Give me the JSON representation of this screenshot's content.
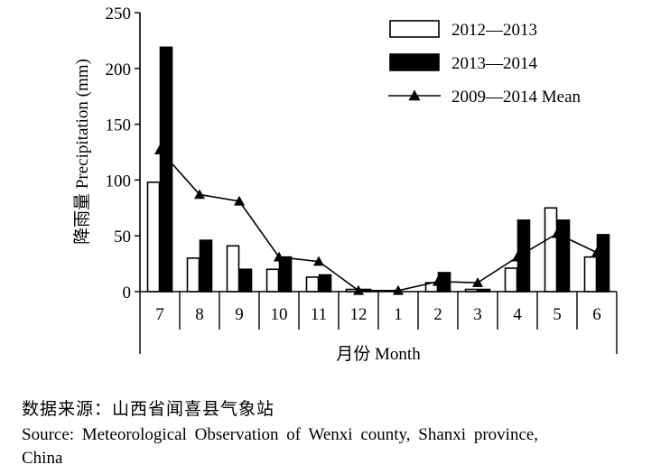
{
  "chart_data": {
    "type": "bar",
    "categories": [
      "7",
      "8",
      "9",
      "10",
      "11",
      "12",
      "1",
      "2",
      "3",
      "4",
      "5",
      "6"
    ],
    "series": [
      {
        "name": "2012—2013",
        "kind": "bar",
        "fill": "#ffffff",
        "values": [
          98,
          30,
          41,
          20,
          13,
          2,
          0,
          8,
          2,
          21,
          75,
          31
        ]
      },
      {
        "name": "2013—2014",
        "kind": "bar",
        "fill": "#000000",
        "values": [
          219,
          46,
          20,
          31,
          15,
          2,
          0,
          17,
          2,
          64,
          64,
          51
        ]
      },
      {
        "name": "2009—2014 Mean",
        "kind": "line",
        "marker": "triangle",
        "values": [
          127,
          87,
          81,
          31,
          27,
          1,
          1,
          9,
          8,
          31,
          52,
          35
        ]
      }
    ],
    "ylabel": "降雨量 Precipitation (mm)",
    "xlabel": "月份 Month",
    "ylim": [
      0,
      250
    ],
    "yticks": [
      0,
      50,
      100,
      150,
      200,
      250
    ],
    "grid": false,
    "legend": "top-right"
  },
  "source": {
    "cn": "数据来源：山西省闻喜县气象站",
    "en": "Source: Meteorological Observation of Wenxi county, Shanxi province,",
    "en_cont": "China"
  }
}
